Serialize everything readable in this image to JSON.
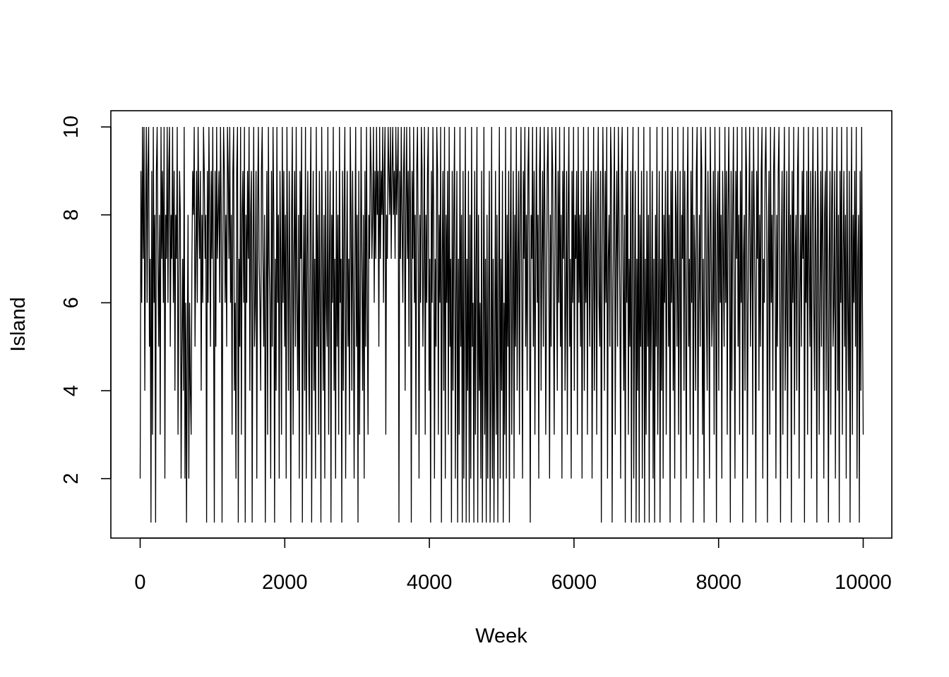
{
  "chart_data": {
    "type": "line",
    "title": "",
    "xlabel": "Week",
    "ylabel": "Island",
    "xlim": [
      0,
      10000
    ],
    "ylim": [
      1,
      10
    ],
    "x_ticks": [
      "0",
      "2000",
      "4000",
      "6000",
      "8000",
      "10000"
    ],
    "y_ticks": [
      "2",
      "4",
      "6",
      "8",
      "10"
    ],
    "grid": false,
    "legend": "none",
    "series": [
      {
        "values": [
          2,
          9,
          6,
          10,
          7,
          10,
          4,
          8,
          10,
          6,
          9,
          10,
          5,
          7,
          1,
          9,
          3,
          10,
          6,
          8,
          1,
          9,
          10,
          7,
          5,
          8,
          3,
          10,
          7,
          9,
          6,
          10,
          2,
          8,
          7,
          10,
          6,
          9,
          10,
          5,
          8,
          7,
          10,
          6,
          9,
          4,
          8,
          7,
          10,
          3,
          6,
          9,
          8,
          2,
          5,
          7,
          4,
          10,
          2,
          6,
          1,
          5,
          8,
          2,
          6,
          4,
          3,
          7,
          9,
          8,
          10,
          5,
          7,
          9,
          6,
          10,
          8,
          7,
          9,
          4,
          8,
          6,
          10,
          9,
          7,
          8,
          1,
          9,
          6,
          10,
          8,
          5,
          9,
          7,
          10,
          6,
          1,
          9,
          5,
          10,
          7,
          8,
          9,
          6,
          10,
          8,
          1,
          7,
          10,
          9,
          6,
          8,
          5,
          10,
          9,
          7,
          10,
          6,
          8,
          3,
          9,
          10,
          4,
          6,
          2,
          9,
          10,
          1,
          7,
          5,
          10,
          3,
          8,
          9,
          6,
          10,
          1,
          8,
          6,
          9,
          7,
          10,
          4,
          8,
          9,
          1,
          7,
          10,
          5,
          6,
          9,
          2,
          8,
          10,
          7,
          6,
          4,
          9,
          10,
          7,
          5,
          8,
          1,
          6,
          9,
          3,
          10,
          7,
          6,
          2,
          9,
          5,
          10,
          8,
          1,
          7,
          4,
          10,
          6,
          8,
          2,
          9,
          7,
          3,
          10,
          6,
          9,
          5,
          8,
          2,
          10,
          7,
          4,
          9,
          6,
          1,
          8,
          10,
          3,
          7,
          9,
          5,
          10,
          6,
          4,
          8,
          2,
          9,
          7,
          10,
          1,
          6,
          8,
          4,
          10,
          2,
          7,
          9,
          5,
          3,
          8,
          10,
          1,
          6,
          9,
          4,
          7,
          2,
          10,
          5,
          8,
          3,
          9,
          6,
          1,
          10,
          7,
          4,
          8,
          2,
          9,
          6,
          5,
          10,
          3,
          7,
          9,
          1,
          8,
          6,
          10,
          4,
          7,
          2,
          9,
          5,
          8,
          3,
          10,
          6,
          7,
          1,
          9,
          4,
          8,
          10,
          2,
          6,
          9,
          5,
          7,
          3,
          10,
          8,
          4,
          9,
          6,
          2,
          7,
          10,
          5,
          8,
          1,
          9,
          3,
          6,
          10,
          7,
          4,
          8,
          2,
          9,
          5,
          10,
          6,
          3,
          8,
          7,
          10,
          9,
          7,
          8,
          10,
          6,
          9,
          7,
          10,
          8,
          9,
          5,
          10,
          7,
          9,
          8,
          10,
          6,
          9,
          10,
          3,
          8,
          7,
          10,
          9,
          8,
          10,
          7,
          9,
          10,
          8,
          9,
          7,
          10,
          8,
          9,
          10,
          1,
          9,
          7,
          10,
          8,
          6,
          9,
          10,
          4,
          8,
          10,
          7,
          9,
          5,
          10,
          8,
          1,
          9,
          7,
          10,
          6,
          8,
          3,
          9,
          10,
          7,
          2,
          8,
          6,
          10,
          9,
          5,
          7,
          10,
          3,
          8,
          6,
          9,
          10,
          4,
          7,
          1,
          9,
          6,
          10,
          8,
          2,
          7,
          5,
          10,
          9,
          3,
          8,
          6,
          10,
          1,
          7,
          9,
          4,
          10,
          2,
          8,
          6,
          9,
          3,
          10,
          5,
          7,
          1,
          9,
          4,
          8,
          10,
          2,
          6,
          9,
          1,
          7,
          3,
          10,
          5,
          8,
          1,
          9,
          2,
          6,
          10,
          1,
          7,
          4,
          9,
          1,
          8,
          2,
          10,
          5,
          6,
          1,
          9,
          3,
          7,
          10,
          1,
          8,
          4,
          6,
          2,
          9,
          1,
          5,
          10,
          3,
          7,
          1,
          8,
          2,
          6,
          9,
          1,
          4,
          10,
          2,
          7,
          1,
          5,
          9,
          3,
          8,
          1,
          6,
          10,
          2,
          7,
          4,
          9,
          1,
          6,
          3,
          10,
          2,
          8,
          5,
          9,
          1,
          7,
          10,
          3,
          6,
          9,
          2,
          8,
          5,
          10,
          4,
          7,
          9,
          3,
          8,
          10,
          6,
          2,
          9,
          7,
          10,
          5,
          8,
          4,
          9,
          10,
          6,
          1,
          8,
          7,
          10,
          5,
          9,
          3,
          7,
          10,
          6,
          8,
          2,
          9,
          10,
          4,
          7,
          9,
          5,
          10,
          8,
          3,
          6,
          9,
          10,
          7,
          2,
          8,
          5,
          10,
          9,
          6,
          3,
          8,
          10,
          7,
          4,
          9,
          6,
          10,
          5,
          8,
          2,
          9,
          7,
          10,
          4,
          6,
          9,
          3,
          8,
          10,
          5,
          7,
          2,
          9,
          6,
          10,
          4,
          8,
          7,
          9,
          3,
          10,
          6,
          8,
          5,
          9,
          2,
          7,
          10,
          4,
          8,
          6,
          9,
          3,
          10,
          7,
          5,
          8,
          9,
          2,
          6,
          10,
          4,
          7,
          9,
          3,
          8,
          10,
          6,
          5,
          9,
          1,
          7,
          10,
          8,
          4,
          9,
          6,
          10,
          2,
          7,
          8,
          5,
          10,
          9,
          1,
          6,
          8,
          10,
          3,
          7,
          9,
          5,
          10,
          8,
          6,
          2,
          9,
          10,
          7,
          4,
          8,
          1,
          9,
          6,
          10,
          3,
          7,
          5,
          9,
          1,
          8,
          10,
          2,
          6,
          9,
          1,
          7,
          4,
          10,
          1,
          8,
          5,
          9,
          2,
          6,
          10,
          1,
          7,
          3,
          9,
          5,
          8,
          1,
          10,
          4,
          6,
          9,
          2,
          7,
          1,
          8,
          5,
          10,
          3,
          6,
          9,
          1,
          7,
          4,
          10,
          2,
          8,
          6,
          9,
          3,
          7,
          10,
          5,
          8,
          1,
          9,
          6,
          10,
          4,
          7,
          2,
          9,
          8,
          5,
          10,
          3,
          6,
          9,
          1,
          8,
          7,
          10,
          4,
          9,
          6,
          2,
          8,
          10,
          5,
          7,
          3,
          9,
          6,
          10,
          1,
          8,
          7,
          4,
          9,
          10,
          2,
          6,
          8,
          5,
          10,
          9,
          3,
          7,
          1,
          8,
          10,
          6,
          4,
          9,
          7,
          2,
          10,
          8,
          5,
          6,
          9,
          3,
          10,
          7,
          1,
          8,
          9,
          4,
          10,
          6,
          8,
          2,
          9,
          7,
          5,
          10,
          6,
          9,
          3,
          8,
          10,
          7,
          1,
          9,
          4,
          8,
          10,
          6,
          2,
          9,
          7,
          10,
          5,
          8,
          3,
          9,
          6,
          10,
          1,
          7,
          8,
          4,
          10,
          9,
          2,
          6,
          8,
          10,
          5,
          7,
          9,
          3,
          10,
          8,
          6,
          1,
          9,
          7,
          10,
          4,
          8,
          5,
          9,
          10,
          2,
          7,
          6,
          9,
          10,
          8,
          1,
          7,
          9,
          3,
          10,
          6,
          8,
          4,
          9,
          10,
          7,
          2,
          8,
          5,
          9,
          10,
          6,
          1,
          7,
          9,
          3,
          8,
          10,
          4,
          6,
          9,
          2,
          7,
          10,
          5,
          8,
          1,
          9,
          6,
          10,
          3,
          7,
          8,
          4,
          9,
          10,
          2,
          6,
          8,
          5,
          9,
          7,
          10,
          1,
          8,
          6,
          9,
          3,
          10,
          7,
          5,
          9,
          2,
          8,
          10,
          6,
          4,
          9,
          7,
          1,
          10,
          8,
          3,
          6,
          9,
          5,
          10,
          7,
          2,
          8,
          9,
          4,
          10,
          6,
          1,
          7,
          9,
          3,
          8,
          10,
          5,
          6,
          9,
          2,
          7,
          10,
          4,
          8,
          1,
          9,
          6,
          10,
          3,
          7,
          9,
          5,
          8,
          2,
          10,
          6,
          4,
          9,
          1,
          7,
          10,
          3,
          8,
          6,
          9,
          5,
          10,
          2,
          7,
          8,
          1,
          9,
          4,
          10,
          6,
          3
        ]
      }
    ]
  }
}
